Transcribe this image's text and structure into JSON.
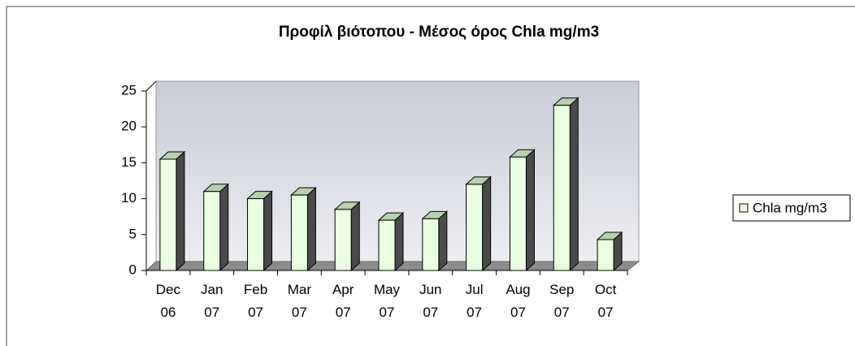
{
  "chart_data": {
    "type": "bar",
    "title": "Προφίλ βιότοπου - Μέσος όρος Chla mg/m3",
    "categories": [
      "Dec 06",
      "Jan 07",
      "Feb 07",
      "Mar 07",
      "Apr 07",
      "May 07",
      "Jun 07",
      "Jul 07",
      "Aug 07",
      "Sep 07",
      "Oct 07"
    ],
    "series": [
      {
        "name": "Chla mg/m3",
        "color": "#eaffe2",
        "values": [
          15.5,
          11,
          10,
          10.5,
          8.5,
          7,
          7.2,
          12,
          15.8,
          23,
          4.3
        ]
      }
    ],
    "ylim": [
      0,
      25
    ],
    "yticks": [
      0,
      5,
      10,
      15,
      20,
      25
    ],
    "grid": false,
    "legend": "right"
  }
}
